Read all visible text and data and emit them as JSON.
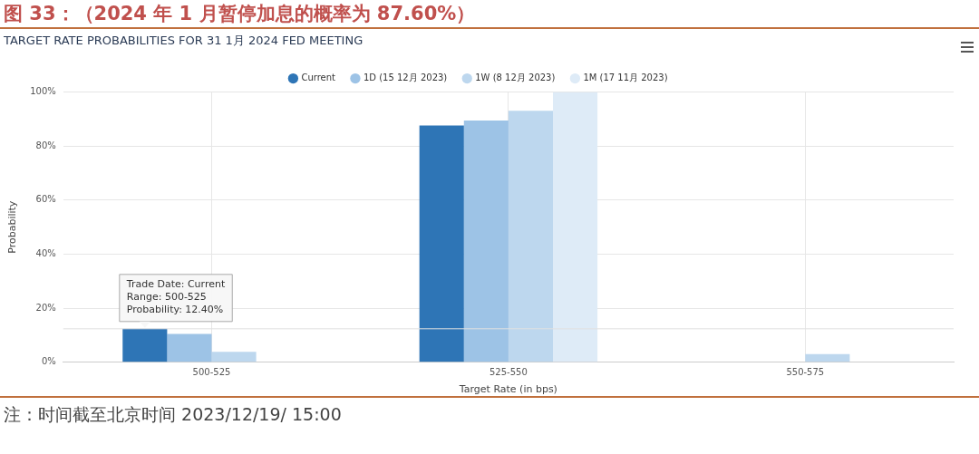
{
  "chart_data": {
    "type": "bar",
    "title": "图 33：（2024 年 1 月暂停加息的概率为 87.60%）",
    "subtitle": "TARGET RATE PROBABILITIES FOR 31 1月 2024 FED MEETING",
    "xlabel": "Target Rate (in bps)",
    "ylabel": "Probability",
    "categories": [
      "500-525",
      "525-550",
      "550-575"
    ],
    "series": [
      {
        "name": "Current",
        "color": "#2e75b6",
        "values": [
          12.4,
          87.6,
          0
        ]
      },
      {
        "name": "1D (15 12月 2023)",
        "color": "#9dc3e6",
        "values": [
          10.5,
          89.5,
          0
        ]
      },
      {
        "name": "1W (8 12月 2023)",
        "color": "#bdd7ee",
        "values": [
          3.9,
          93.1,
          3.0
        ]
      },
      {
        "name": "1M (17 11月 2023)",
        "color": "#deebf7",
        "values": [
          0,
          100,
          0
        ]
      }
    ],
    "ylim": [
      0,
      100
    ],
    "yticks": [
      {
        "value": 0,
        "label": "0%"
      },
      {
        "value": 20,
        "label": "20%"
      },
      {
        "value": 40,
        "label": "40%"
      },
      {
        "value": 60,
        "label": "60%"
      },
      {
        "value": 80,
        "label": "80%"
      },
      {
        "value": 100,
        "label": "100%"
      }
    ],
    "ref_lines": [
      {
        "axis": "y",
        "value": 12.4,
        "color": "#e0e0e0"
      }
    ],
    "annotations": [
      {
        "text": "Trade Date: Current\nRange: 500-525\nProbability: 12.40%",
        "x": "500-525",
        "y": 12.4
      },
      "注：时间截至北京时间 2023/12/19/ 15:00"
    ],
    "grid": true,
    "legend": "top"
  }
}
